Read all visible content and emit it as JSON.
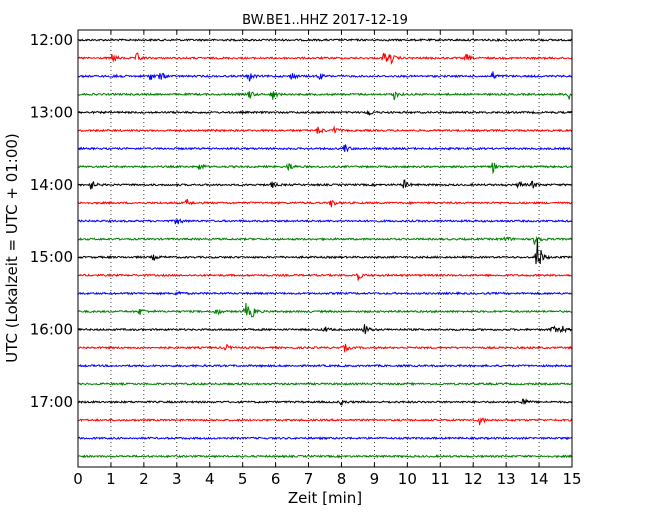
{
  "chart_data": {
    "type": "line",
    "title": "BW.BE1..HHZ 2017-12-19",
    "xlabel": "Zeit  [min]",
    "ylabel": "UTC (Lokalzeit = UTC + 01:00)",
    "xlim": [
      0,
      15
    ],
    "x_ticks": [
      0,
      1,
      2,
      3,
      4,
      5,
      6,
      7,
      8,
      9,
      10,
      11,
      12,
      13,
      14,
      15
    ],
    "x_tick_labels": [
      "0",
      "1",
      "2",
      "3",
      "4",
      "5",
      "6",
      "7",
      "8",
      "9",
      "10",
      "11",
      "12",
      "13",
      "14",
      "15"
    ],
    "y_tick_labels": [
      "12:00",
      "13:00",
      "14:00",
      "15:00",
      "16:00",
      "17:00"
    ],
    "grid": "vertical dotted",
    "series_colors": [
      "#000000",
      "#ff0000",
      "#0000ff",
      "#008000"
    ],
    "traces": [
      {
        "start": "12:00",
        "events": []
      },
      {
        "start": "12:15",
        "events": [
          {
            "t": 1.05,
            "a": 5
          },
          {
            "t": 1.8,
            "a": 5
          },
          {
            "t": 9.3,
            "a": 7
          },
          {
            "t": 9.5,
            "a": 5
          },
          {
            "t": 11.8,
            "a": 4
          }
        ]
      },
      {
        "start": "12:30",
        "events": [
          {
            "t": 1.1,
            "a": 5
          },
          {
            "t": 2.2,
            "a": 4
          },
          {
            "t": 2.5,
            "a": 5
          },
          {
            "t": 5.2,
            "a": 5
          },
          {
            "t": 6.5,
            "a": 4
          },
          {
            "t": 7.3,
            "a": 4
          },
          {
            "t": 12.6,
            "a": 4
          }
        ]
      },
      {
        "start": "12:45",
        "events": [
          {
            "t": 5.2,
            "a": 5
          },
          {
            "t": 5.9,
            "a": 6
          },
          {
            "t": 9.6,
            "a": 5
          },
          {
            "t": 14.9,
            "a": 6
          }
        ]
      },
      {
        "start": "13:00",
        "events": [
          {
            "t": 8.8,
            "a": 4
          }
        ]
      },
      {
        "start": "13:15",
        "events": [
          {
            "t": 7.3,
            "a": 5
          },
          {
            "t": 7.8,
            "a": 4
          }
        ]
      },
      {
        "start": "13:30",
        "events": [
          {
            "t": 8.1,
            "a": 5
          }
        ]
      },
      {
        "start": "13:45",
        "events": [
          {
            "t": 3.7,
            "a": 4
          },
          {
            "t": 6.4,
            "a": 4
          },
          {
            "t": 12.6,
            "a": 5
          }
        ]
      },
      {
        "start": "14:00",
        "events": [
          {
            "t": 0.4,
            "a": 5
          },
          {
            "t": 5.9,
            "a": 3
          },
          {
            "t": 9.9,
            "a": 5
          },
          {
            "t": 13.4,
            "a": 4
          },
          {
            "t": 13.8,
            "a": 4
          }
        ]
      },
      {
        "start": "14:15",
        "events": [
          {
            "t": 3.3,
            "a": 4
          },
          {
            "t": 7.7,
            "a": 5
          }
        ]
      },
      {
        "start": "14:30",
        "events": [
          {
            "t": 3.0,
            "a": 5
          }
        ]
      },
      {
        "start": "14:45",
        "events": [
          {
            "t": 13.0,
            "a": 3
          },
          {
            "t": 13.9,
            "a": 10
          }
        ]
      },
      {
        "start": "15:00",
        "events": [
          {
            "t": 2.3,
            "a": 3
          },
          {
            "t": 13.95,
            "a": 22
          }
        ]
      },
      {
        "start": "15:15",
        "events": [
          {
            "t": 8.5,
            "a": 5
          }
        ]
      },
      {
        "start": "15:30",
        "events": [
          {
            "t": 3.0,
            "a": 3
          }
        ]
      },
      {
        "start": "15:45",
        "events": [
          {
            "t": 1.9,
            "a": 4
          },
          {
            "t": 4.2,
            "a": 4
          },
          {
            "t": 5.1,
            "a": 9
          },
          {
            "t": 5.3,
            "a": 5
          }
        ]
      },
      {
        "start": "16:00",
        "events": [
          {
            "t": 7.5,
            "a": 3
          },
          {
            "t": 8.7,
            "a": 6
          },
          {
            "t": 14.4,
            "a": 5
          },
          {
            "t": 14.7,
            "a": 4
          }
        ]
      },
      {
        "start": "16:15",
        "events": [
          {
            "t": 4.5,
            "a": 3
          },
          {
            "t": 8.1,
            "a": 4
          }
        ]
      },
      {
        "start": "16:30",
        "events": []
      },
      {
        "start": "16:45",
        "events": []
      },
      {
        "start": "17:00",
        "events": [
          {
            "t": 8.0,
            "a": 3
          },
          {
            "t": 13.5,
            "a": 5
          }
        ]
      },
      {
        "start": "17:15",
        "events": [
          {
            "t": 12.2,
            "a": 5
          }
        ]
      },
      {
        "start": "17:30",
        "events": []
      },
      {
        "start": "17:45",
        "events": []
      }
    ]
  }
}
